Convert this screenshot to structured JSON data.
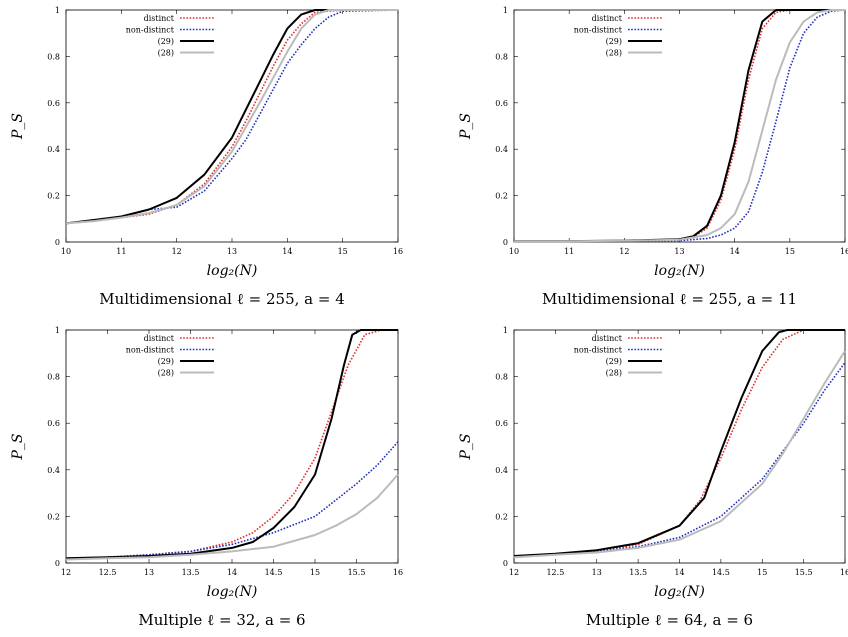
{
  "chart_data": [
    {
      "type": "line",
      "caption": "Multidimensional ℓ = 255, a = 4",
      "xlabel": "log₂(N)",
      "ylabel": "P_S",
      "xlim": [
        10,
        16
      ],
      "ylim": [
        0,
        1
      ],
      "xticks": [
        "10",
        "11",
        "12",
        "13",
        "14",
        "15",
        "16"
      ],
      "yticks": [
        "0",
        "0.2",
        "0.4",
        "0.6",
        "0.8",
        "1"
      ],
      "grid": false,
      "legend": "top-left",
      "series": [
        {
          "name": "distinct",
          "color": "#e03030",
          "style": "dotted",
          "points": [
            [
              10,
              0.08
            ],
            [
              10.5,
              0.09
            ],
            [
              11,
              0.105
            ],
            [
              11.5,
              0.12
            ],
            [
              12,
              0.16
            ],
            [
              12.5,
              0.25
            ],
            [
              13,
              0.41
            ],
            [
              13.25,
              0.52
            ],
            [
              13.5,
              0.64
            ],
            [
              13.75,
              0.76
            ],
            [
              14,
              0.87
            ],
            [
              14.25,
              0.94
            ],
            [
              14.5,
              0.99
            ],
            [
              15,
              1
            ],
            [
              16,
              1
            ]
          ]
        },
        {
          "name": "non-distinct",
          "color": "#2030c0",
          "style": "dotted",
          "points": [
            [
              10,
              0.08
            ],
            [
              10.5,
              0.09
            ],
            [
              11,
              0.11
            ],
            [
              11.5,
              0.14
            ],
            [
              12,
              0.15
            ],
            [
              12.5,
              0.22
            ],
            [
              13,
              0.36
            ],
            [
              13.25,
              0.44
            ],
            [
              13.5,
              0.55
            ],
            [
              13.75,
              0.66
            ],
            [
              14,
              0.77
            ],
            [
              14.25,
              0.85
            ],
            [
              14.5,
              0.92
            ],
            [
              14.75,
              0.97
            ],
            [
              15,
              0.995
            ],
            [
              16,
              1
            ]
          ]
        },
        {
          "name": "(29)",
          "color": "#000000",
          "style": "solid",
          "points": [
            [
              10,
              0.08
            ],
            [
              10.5,
              0.095
            ],
            [
              11,
              0.11
            ],
            [
              11.5,
              0.14
            ],
            [
              12,
              0.19
            ],
            [
              12.5,
              0.29
            ],
            [
              13,
              0.45
            ],
            [
              13.25,
              0.57
            ],
            [
              13.5,
              0.69
            ],
            [
              13.75,
              0.81
            ],
            [
              14,
              0.92
            ],
            [
              14.25,
              0.98
            ],
            [
              14.5,
              1
            ],
            [
              16,
              1
            ]
          ]
        },
        {
          "name": "(28)",
          "color": "#bbbbbb",
          "style": "solid",
          "points": [
            [
              10,
              0.08
            ],
            [
              10.5,
              0.09
            ],
            [
              11,
              0.105
            ],
            [
              11.5,
              0.125
            ],
            [
              12,
              0.16
            ],
            [
              12.5,
              0.24
            ],
            [
              13,
              0.39
            ],
            [
              13.5,
              0.6
            ],
            [
              14,
              0.82
            ],
            [
              14.25,
              0.92
            ],
            [
              14.5,
              0.98
            ],
            [
              14.75,
              1
            ],
            [
              16,
              1
            ]
          ]
        }
      ]
    },
    {
      "type": "line",
      "caption": "Multidimensional ℓ = 255, a = 11",
      "xlabel": "log₂(N)",
      "ylabel": "P_S",
      "xlim": [
        10,
        16
      ],
      "ylim": [
        0,
        1
      ],
      "xticks": [
        "10",
        "11",
        "12",
        "13",
        "14",
        "15",
        "16"
      ],
      "yticks": [
        "0",
        "0.2",
        "0.4",
        "0.6",
        "0.8",
        "1"
      ],
      "grid": false,
      "legend": "top-left",
      "series": [
        {
          "name": "distinct",
          "color": "#e03030",
          "style": "dotted",
          "points": [
            [
              10,
              0.003
            ],
            [
              11,
              0.003
            ],
            [
              12,
              0.005
            ],
            [
              13,
              0.01
            ],
            [
              13.25,
              0.02
            ],
            [
              13.5,
              0.06
            ],
            [
              13.75,
              0.18
            ],
            [
              14,
              0.4
            ],
            [
              14.25,
              0.7
            ],
            [
              14.5,
              0.92
            ],
            [
              14.75,
              0.99
            ],
            [
              15,
              1
            ],
            [
              16,
              1
            ]
          ]
        },
        {
          "name": "non-distinct",
          "color": "#2030c0",
          "style": "dotted",
          "points": [
            [
              10,
              0.003
            ],
            [
              11,
              0.003
            ],
            [
              12,
              0.004
            ],
            [
              13,
              0.006
            ],
            [
              13.5,
              0.015
            ],
            [
              13.75,
              0.03
            ],
            [
              14,
              0.06
            ],
            [
              14.25,
              0.13
            ],
            [
              14.5,
              0.3
            ],
            [
              14.75,
              0.52
            ],
            [
              15,
              0.75
            ],
            [
              15.25,
              0.9
            ],
            [
              15.5,
              0.97
            ],
            [
              15.75,
              0.995
            ],
            [
              16,
              1
            ]
          ]
        },
        {
          "name": "(29)",
          "color": "#000000",
          "style": "solid",
          "points": [
            [
              10,
              0.004
            ],
            [
              11,
              0.004
            ],
            [
              12,
              0.006
            ],
            [
              13,
              0.012
            ],
            [
              13.25,
              0.025
            ],
            [
              13.5,
              0.07
            ],
            [
              13.75,
              0.2
            ],
            [
              14,
              0.43
            ],
            [
              14.25,
              0.74
            ],
            [
              14.5,
              0.95
            ],
            [
              14.75,
              1
            ],
            [
              16,
              1
            ]
          ]
        },
        {
          "name": "(28)",
          "color": "#bbbbbb",
          "style": "solid",
          "points": [
            [
              10,
              0.003
            ],
            [
              11,
              0.003
            ],
            [
              12,
              0.005
            ],
            [
              13,
              0.01
            ],
            [
              13.5,
              0.03
            ],
            [
              13.75,
              0.06
            ],
            [
              14,
              0.12
            ],
            [
              14.25,
              0.26
            ],
            [
              14.5,
              0.48
            ],
            [
              14.75,
              0.7
            ],
            [
              15,
              0.86
            ],
            [
              15.25,
              0.95
            ],
            [
              15.5,
              0.99
            ],
            [
              15.75,
              1
            ],
            [
              16,
              1
            ]
          ]
        }
      ]
    },
    {
      "type": "line",
      "caption": "Multiple ℓ = 32, a = 6",
      "xlabel": "log₂(N)",
      "ylabel": "P_S",
      "xlim": [
        12,
        16
      ],
      "ylim": [
        0,
        1
      ],
      "xticks": [
        "12",
        "12.5",
        "13",
        "13.5",
        "14",
        "14.5",
        "15",
        "15.5",
        "16"
      ],
      "yticks": [
        "0",
        "0.2",
        "0.4",
        "0.6",
        "0.8",
        "1"
      ],
      "grid": false,
      "legend": "top-left",
      "series": [
        {
          "name": "distinct",
          "color": "#e03030",
          "style": "dotted",
          "points": [
            [
              12,
              0.02
            ],
            [
              12.5,
              0.025
            ],
            [
              13,
              0.035
            ],
            [
              13.5,
              0.05
            ],
            [
              14,
              0.09
            ],
            [
              14.25,
              0.13
            ],
            [
              14.5,
              0.2
            ],
            [
              14.75,
              0.3
            ],
            [
              15,
              0.45
            ],
            [
              15.2,
              0.65
            ],
            [
              15.4,
              0.85
            ],
            [
              15.6,
              0.98
            ],
            [
              15.8,
              1
            ],
            [
              16,
              1
            ]
          ]
        },
        {
          "name": "non-distinct",
          "color": "#2030c0",
          "style": "dotted",
          "points": [
            [
              12,
              0.02
            ],
            [
              12.5,
              0.025
            ],
            [
              13,
              0.035
            ],
            [
              13.5,
              0.05
            ],
            [
              14,
              0.08
            ],
            [
              14.5,
              0.13
            ],
            [
              15,
              0.2
            ],
            [
              15.25,
              0.27
            ],
            [
              15.5,
              0.34
            ],
            [
              15.75,
              0.42
            ],
            [
              16,
              0.52
            ]
          ]
        },
        {
          "name": "(29)",
          "color": "#000000",
          "style": "solid",
          "points": [
            [
              12,
              0.02
            ],
            [
              12.5,
              0.025
            ],
            [
              13,
              0.03
            ],
            [
              13.5,
              0.04
            ],
            [
              14,
              0.065
            ],
            [
              14.25,
              0.09
            ],
            [
              14.5,
              0.15
            ],
            [
              14.75,
              0.24
            ],
            [
              15,
              0.38
            ],
            [
              15.2,
              0.62
            ],
            [
              15.35,
              0.85
            ],
            [
              15.45,
              0.98
            ],
            [
              15.55,
              1
            ],
            [
              16,
              1
            ]
          ]
        },
        {
          "name": "(28)",
          "color": "#bbbbbb",
          "style": "solid",
          "points": [
            [
              12,
              0.015
            ],
            [
              12.5,
              0.02
            ],
            [
              13,
              0.025
            ],
            [
              13.5,
              0.035
            ],
            [
              14,
              0.05
            ],
            [
              14.5,
              0.07
            ],
            [
              15,
              0.12
            ],
            [
              15.25,
              0.16
            ],
            [
              15.5,
              0.21
            ],
            [
              15.75,
              0.28
            ],
            [
              16,
              0.38
            ]
          ]
        }
      ]
    },
    {
      "type": "line",
      "caption": "Multiple ℓ = 64, a = 6",
      "xlabel": "log₂(N)",
      "ylabel": "P_S",
      "xlim": [
        12,
        16
      ],
      "ylim": [
        0,
        1
      ],
      "xticks": [
        "12",
        "12.5",
        "13",
        "13.5",
        "14",
        "14.5",
        "15",
        "15.5",
        "16"
      ],
      "yticks": [
        "0",
        "0.2",
        "0.4",
        "0.6",
        "0.8",
        "1"
      ],
      "grid": false,
      "legend": "top-left",
      "series": [
        {
          "name": "distinct",
          "color": "#e03030",
          "style": "dotted",
          "points": [
            [
              12,
              0.03
            ],
            [
              12.5,
              0.04
            ],
            [
              13,
              0.05
            ],
            [
              13.5,
              0.08
            ],
            [
              14,
              0.16
            ],
            [
              14.25,
              0.27
            ],
            [
              14.5,
              0.45
            ],
            [
              14.75,
              0.66
            ],
            [
              15,
              0.84
            ],
            [
              15.25,
              0.96
            ],
            [
              15.5,
              1
            ],
            [
              16,
              1
            ]
          ]
        },
        {
          "name": "non-distinct",
          "color": "#2030c0",
          "style": "dotted",
          "points": [
            [
              12,
              0.025
            ],
            [
              12.5,
              0.035
            ],
            [
              13,
              0.05
            ],
            [
              13.5,
              0.07
            ],
            [
              14,
              0.11
            ],
            [
              14.5,
              0.2
            ],
            [
              15,
              0.36
            ],
            [
              15.25,
              0.48
            ],
            [
              15.5,
              0.6
            ],
            [
              15.75,
              0.74
            ],
            [
              16,
              0.86
            ]
          ]
        },
        {
          "name": "(29)",
          "color": "#000000",
          "style": "solid",
          "points": [
            [
              12,
              0.03
            ],
            [
              12.5,
              0.04
            ],
            [
              13,
              0.055
            ],
            [
              13.5,
              0.085
            ],
            [
              14,
              0.16
            ],
            [
              14.3,
              0.28
            ],
            [
              14.5,
              0.48
            ],
            [
              14.75,
              0.71
            ],
            [
              15,
              0.91
            ],
            [
              15.2,
              0.99
            ],
            [
              15.3,
              1
            ],
            [
              16,
              1
            ]
          ]
        },
        {
          "name": "(28)",
          "color": "#bbbbbb",
          "style": "solid",
          "points": [
            [
              12,
              0.025
            ],
            [
              12.5,
              0.035
            ],
            [
              13,
              0.045
            ],
            [
              13.5,
              0.065
            ],
            [
              14,
              0.1
            ],
            [
              14.5,
              0.18
            ],
            [
              15,
              0.34
            ],
            [
              15.25,
              0.47
            ],
            [
              15.5,
              0.62
            ],
            [
              15.75,
              0.77
            ],
            [
              16,
              0.91
            ]
          ]
        }
      ]
    }
  ]
}
